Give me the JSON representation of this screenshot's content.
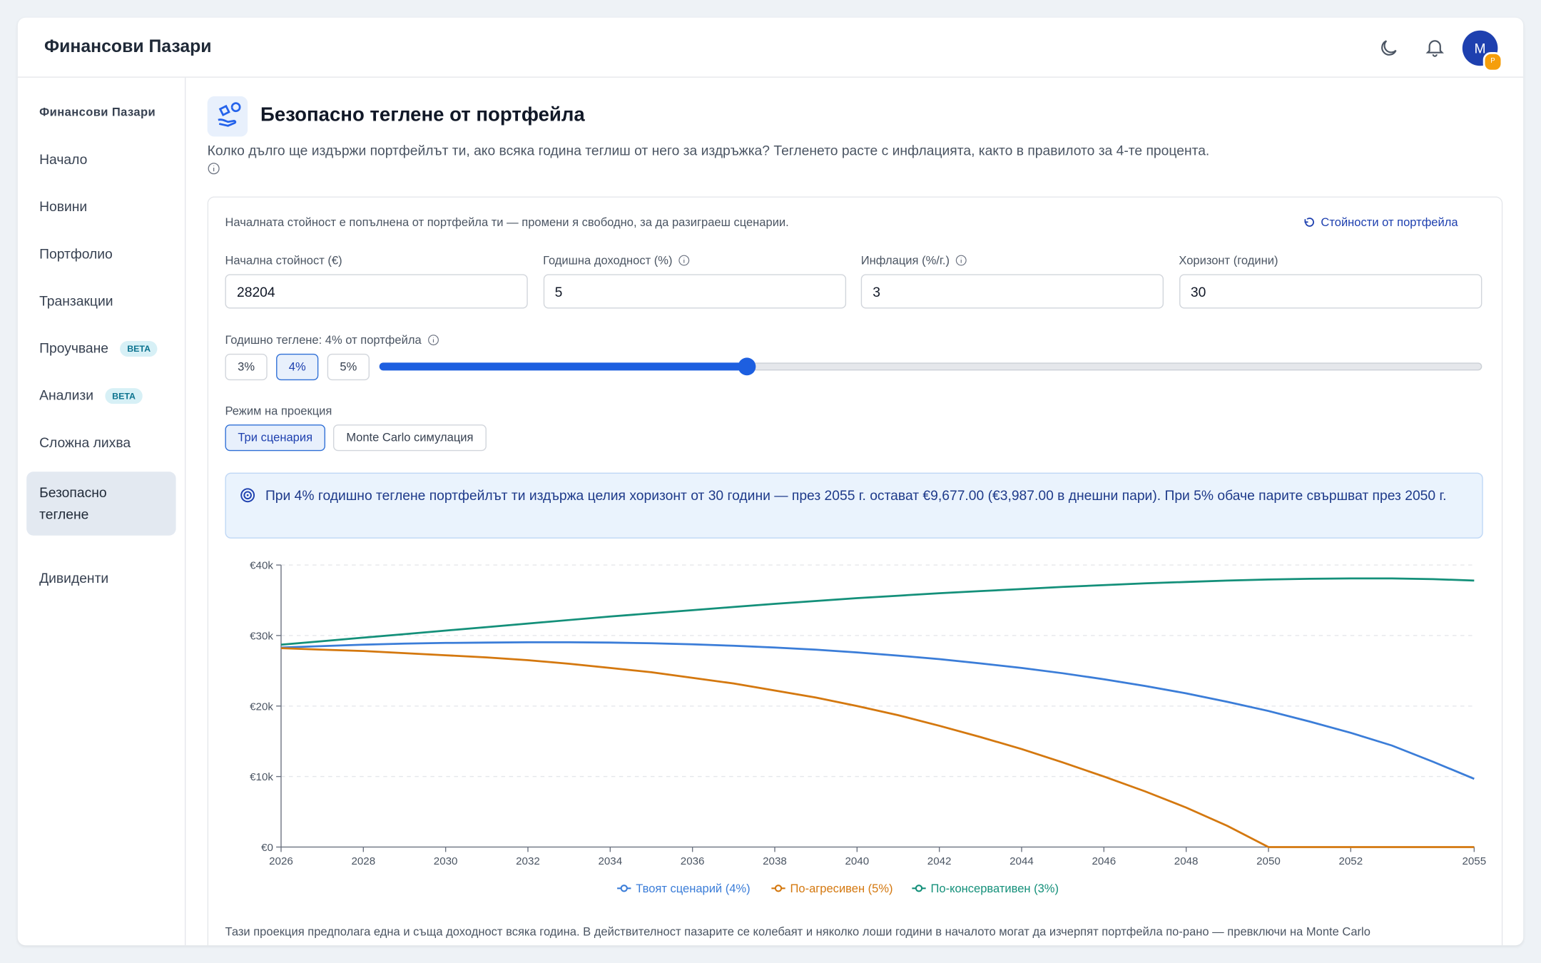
{
  "header": {
    "title": "Финансови Пазари",
    "avatar": "M",
    "badge": "P"
  },
  "sidebar": {
    "heading": "Финансови Пазари",
    "items": [
      {
        "label": "Начало"
      },
      {
        "label": "Новини"
      },
      {
        "label": "Портфолио"
      },
      {
        "label": "Транзакции"
      },
      {
        "label": "Проучване",
        "badge": "BETA"
      },
      {
        "label": "Анализи",
        "badge": "BETA"
      },
      {
        "label": "Сложна лихва"
      },
      {
        "label": "Безопасно теглене",
        "active": true
      },
      {
        "label": "Дивиденти"
      }
    ]
  },
  "page": {
    "title": "Безопасно теглене от портфейла",
    "description": "Колко дълго ще издържи портфейлът ти, ако всяка година теглиш от него за издръжка? Тегленето расте с инфлацията, както в правилото за 4-те процента."
  },
  "card": {
    "note": "Началната стойност е попълнена от портфейла ти — промени я свободно, за да разиграеш сценарии.",
    "reset_button": "Стойности от портфейла",
    "inputs": [
      {
        "label": "Начална стойност (€)",
        "value": "28204"
      },
      {
        "label": "Годишна доходност (%)",
        "value": "5"
      },
      {
        "label": "Инфлация (%/г.)",
        "value": "3"
      },
      {
        "label": "Хоризонт (години)",
        "value": "30"
      }
    ],
    "withdrawal_label": "Годишно теглене: 4% от портфейла",
    "presets": [
      "3%",
      "4%",
      "5%"
    ],
    "slider": {
      "value": 4,
      "min": 2,
      "max": 8
    },
    "mode_label": "Режим на проекция",
    "modes": [
      "Три сценария",
      "Monte Carlo симулация"
    ],
    "info": "При 4% годишно теглене портфейлът ти издържа целия хоризонт от 30 години — през 2055 г. остават €9,677.00 (€3,987.00 в днешни пари). При 5% обаче парите свършват през 2050 г.",
    "footnote": "Тази проекция предполага една и съща доходност всяка година. В действителност пазарите се колебаят и няколко лоши години в началото могат да изчерпят портфейла по-рано — превключи на Monte Carlo"
  },
  "chart_data": {
    "type": "line",
    "x": [
      2026,
      2027,
      2028,
      2029,
      2030,
      2031,
      2032,
      2033,
      2034,
      2035,
      2036,
      2037,
      2038,
      2039,
      2040,
      2041,
      2042,
      2043,
      2044,
      2045,
      2046,
      2047,
      2048,
      2049,
      2050,
      2051,
      2052,
      2053,
      2054,
      2055
    ],
    "series": [
      {
        "name": "Твоят сценарий (4%)",
        "color": "#3b7dd8",
        "values": [
          28300,
          28500,
          28700,
          28850,
          28950,
          29000,
          29050,
          29050,
          29000,
          28900,
          28750,
          28550,
          28300,
          28000,
          27600,
          27150,
          26650,
          26050,
          25400,
          24650,
          23800,
          22850,
          21800,
          20600,
          19300,
          17800,
          16200,
          14400,
          12100,
          9677
        ]
      },
      {
        "name": "По-агресивен (5%)",
        "color": "#d4780f",
        "values": [
          28204,
          28000,
          27800,
          27500,
          27200,
          26900,
          26500,
          26000,
          25400,
          24800,
          24000,
          23200,
          22200,
          21200,
          20000,
          18700,
          17200,
          15600,
          13900,
          12000,
          10000,
          7900,
          5600,
          3000,
          0,
          0,
          0,
          0,
          0,
          0
        ]
      },
      {
        "name": "По-консервативен (3%)",
        "color": "#14907a",
        "values": [
          28700,
          29200,
          29700,
          30200,
          30700,
          31200,
          31700,
          32200,
          32700,
          33150,
          33600,
          34050,
          34500,
          34900,
          35300,
          35650,
          36000,
          36300,
          36600,
          36900,
          37150,
          37400,
          37600,
          37800,
          37950,
          38050,
          38100,
          38100,
          38000,
          37800
        ]
      }
    ],
    "xlim": [
      2026,
      2055
    ],
    "xticks": [
      2026,
      2028,
      2030,
      2032,
      2034,
      2036,
      2038,
      2040,
      2042,
      2044,
      2046,
      2048,
      2050,
      2052,
      2055
    ],
    "ylim": [
      0,
      40000
    ],
    "yticks": [
      {
        "value": 0,
        "label": "€0"
      },
      {
        "value": 10000,
        "label": "€10k"
      },
      {
        "value": 20000,
        "label": "€20k"
      },
      {
        "value": 30000,
        "label": "€30k"
      },
      {
        "value": 40000,
        "label": "€40k"
      }
    ],
    "grid": true
  }
}
